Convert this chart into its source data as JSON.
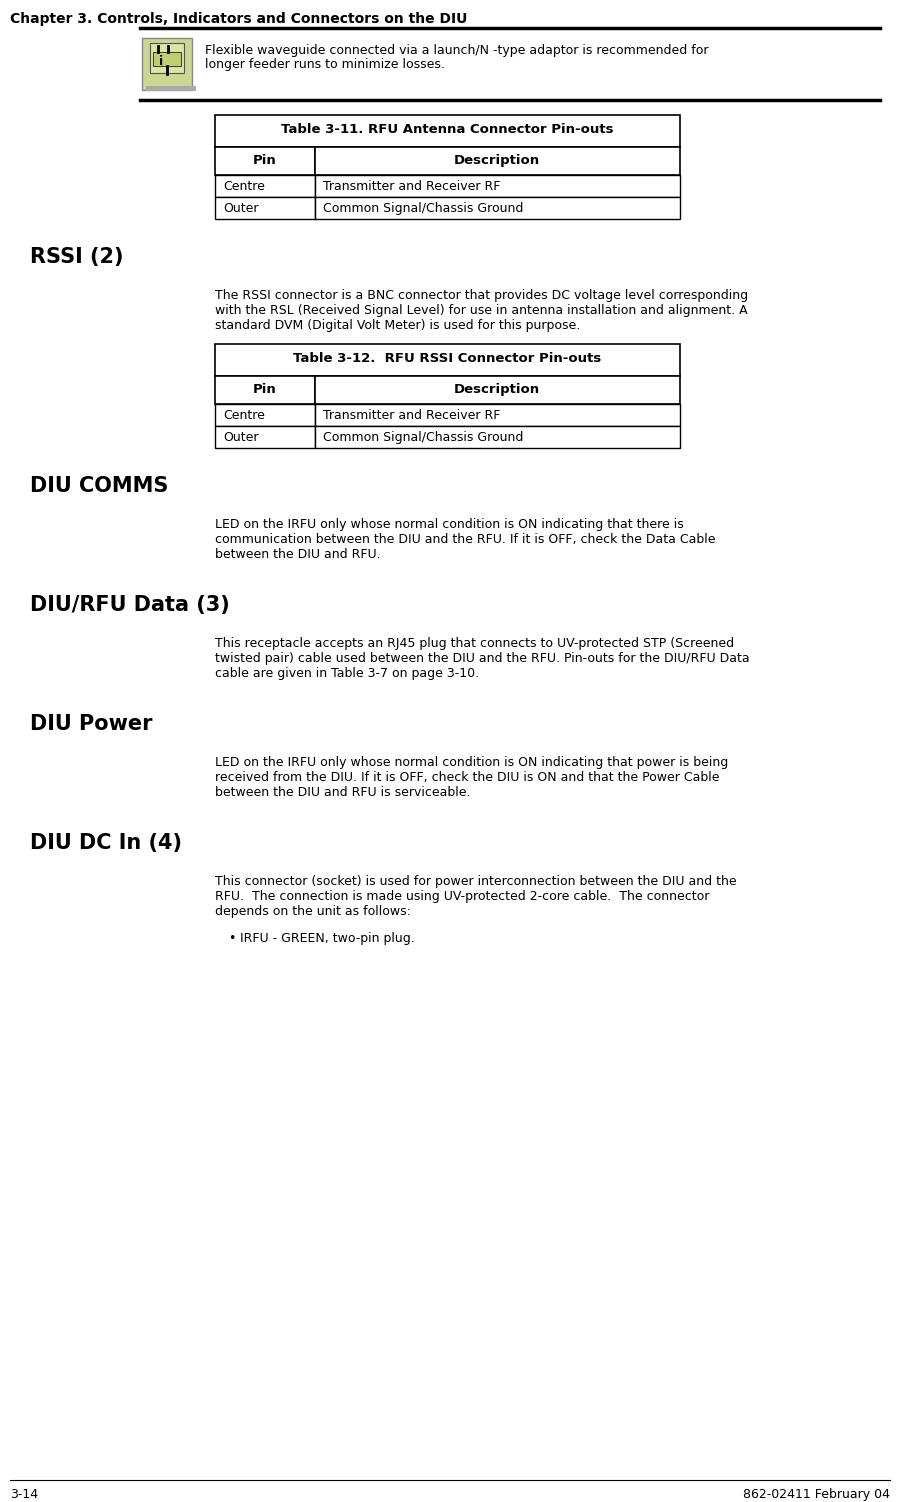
{
  "page_title": "Chapter 3. Controls, Indicators and Connectors on the DIU",
  "footer_left": "3-14",
  "footer_right": "862-02411 February 04",
  "bg_color": "#ffffff",
  "text_color": "#000000",
  "table1_title": "Table 3-11. RFU Antenna Connector Pin-outs",
  "table1_rows": [
    [
      "Centre",
      "Transmitter and Receiver RF"
    ],
    [
      "Outer",
      "Common Signal/Chassis Ground"
    ]
  ],
  "section2_title": "RSSI (2)",
  "section2_body": [
    "The RSSI connector is a BNC connector that provides DC voltage level corresponding",
    "with the RSL (Received Signal Level) for use in antenna installation and alignment. A",
    "standard DVM (Digital Volt Meter) is used for this purpose."
  ],
  "table2_title": "Table 3-12.  RFU RSSI Connector Pin-outs",
  "table2_rows": [
    [
      "Centre",
      "Transmitter and Receiver RF"
    ],
    [
      "Outer",
      "Common Signal/Chassis Ground"
    ]
  ],
  "section3_title": "DIU COMMS",
  "section3_body": [
    "LED on the IRFU only whose normal condition is ON indicating that there is",
    "communication between the DIU and the RFU. If it is OFF, check the Data Cable",
    "between the DIU and RFU."
  ],
  "section4_title": "DIU/RFU Data (3)",
  "section4_body": [
    "This receptacle accepts an RJ45 plug that connects to UV-protected STP (Screened",
    "twisted pair) cable used between the DIU and the RFU. Pin-outs for the DIU/RFU Data",
    "cable are given in Table 3-7 on page 3-10."
  ],
  "section5_title": "DIU Power",
  "section5_body": [
    "LED on the IRFU only whose normal condition is ON indicating that power is being",
    "received from the DIU. If it is OFF, check the DIU is ON and that the Power Cable",
    "between the DIU and RFU is serviceable."
  ],
  "section6_title": "DIU DC In (4)",
  "section6_body": [
    "This connector (socket) is used for power interconnection between the DIU and the",
    "RFU.  The connection is made using UV-protected 2-core cable.  The connector",
    "depends on the unit as follows:"
  ],
  "section6_bullet": "IRFU - GREEN, two-pin plug.",
  "note_line1": "Flexible waveguide connected via a launch/N -type adaptor is recommended for",
  "note_line2": "longer feeder runs to minimize losses."
}
